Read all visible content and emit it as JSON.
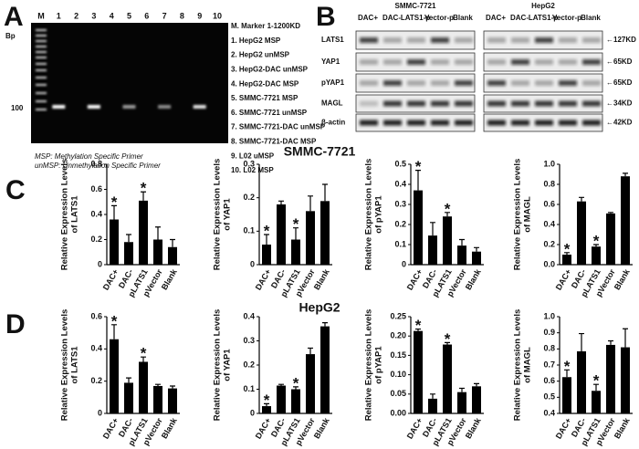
{
  "figure": {
    "panel_labels": [
      "A",
      "B",
      "C",
      "D"
    ],
    "section_titles": [
      "SMMC-7721",
      "HepG2"
    ],
    "gel": {
      "bp_label": "Bp",
      "lanes": [
        "M",
        "1",
        "2",
        "3",
        "4",
        "5",
        "6",
        "7",
        "8",
        "9",
        "10"
      ],
      "marker_label": "100",
      "legend": [
        "M. Marker 1-1200KD",
        "1. HepG2 MSP",
        "2. HepG2 unMSP",
        "3. HepG2-DAC unMSP",
        "4. HepG2-DAC MSP",
        "5. SMMC-7721 MSP",
        "6. SMMC-7721 unMSP",
        "7. SMMC-7721-DAC unMSP",
        "8. SMMC-7721-DAC MSP",
        "9. L02 uMSP",
        "10. L02 MSP"
      ],
      "notes": [
        "MSP: Methylation Specific Primer",
        "unMSP: Unmethylation Specific Primer"
      ]
    },
    "blot": {
      "cell_lines": [
        "SMMC-7721",
        "HepG2"
      ],
      "columns": [
        "DAC+",
        "DAC-",
        "LATS1-p",
        "Vector-p",
        "Blank"
      ],
      "rows": [
        "LATS1",
        "YAP1",
        "pYAP1",
        "MAGL",
        "β-actin"
      ],
      "sizes": [
        "←127KD",
        "←65KD",
        "←65KD",
        "←34KD",
        "←42KD"
      ]
    }
  },
  "chart_data": [
    {
      "type": "bar",
      "ylabel": [
        "Relative Expression Levels",
        "of LATS1"
      ],
      "categories": [
        "DAC+",
        "DAC-",
        "pLATS1",
        "pVector",
        "Blank"
      ],
      "values": [
        0.36,
        0.18,
        0.51,
        0.2,
        0.14
      ],
      "errors": [
        0.11,
        0.06,
        0.07,
        0.1,
        0.06
      ],
      "significance": [
        "*",
        null,
        "*",
        null,
        null
      ],
      "color": "#000000",
      "ylim": [
        0,
        0.8
      ],
      "yticks": [
        0,
        0.2,
        0.4,
        0.6,
        0.8
      ]
    },
    {
      "type": "bar",
      "ylabel": [
        "Relative Expression Levels",
        "of YAP1"
      ],
      "categories": [
        "DAC+",
        "DAC-",
        "pLATS1",
        "pVector",
        "Blank"
      ],
      "values": [
        0.06,
        0.18,
        0.075,
        0.16,
        0.19
      ],
      "errors": [
        0.03,
        0.01,
        0.035,
        0.045,
        0.05
      ],
      "significance": [
        "*",
        null,
        "*",
        null,
        null
      ],
      "color": "#000000",
      "ylim": [
        0,
        0.3
      ],
      "yticks": [
        0,
        0.1,
        0.2,
        0.3
      ]
    },
    {
      "type": "bar",
      "ylabel": [
        "Relative Expression Levels",
        "of pYAP1"
      ],
      "categories": [
        "DAC+",
        "DAC-",
        "pLATS1",
        "pVector",
        "Blank"
      ],
      "values": [
        0.37,
        0.145,
        0.24,
        0.095,
        0.065
      ],
      "errors": [
        0.1,
        0.065,
        0.02,
        0.03,
        0.02
      ],
      "significance": [
        "*",
        null,
        "*",
        null,
        null
      ],
      "color": "#000000",
      "ylim": [
        0,
        0.5
      ],
      "yticks": [
        0,
        0.1,
        0.2,
        0.3,
        0.4,
        0.5
      ]
    },
    {
      "type": "bar",
      "ylabel": [
        "Relative Expression Levels",
        "of MAGL"
      ],
      "categories": [
        "DAC+",
        "DAC-",
        "pLATS1",
        "pVector",
        "Blank"
      ],
      "values": [
        0.1,
        0.63,
        0.18,
        0.51,
        0.88
      ],
      "errors": [
        0.02,
        0.04,
        0.02,
        0.01,
        0.03
      ],
      "significance": [
        "*",
        null,
        "*",
        null,
        null
      ],
      "color": "#000000",
      "ylim": [
        0,
        1.0
      ],
      "yticks": [
        {
          "value": 0,
          "label": "0.0"
        },
        0.2,
        0.4,
        0.6,
        0.8,
        {
          "value": 1,
          "label": "1.0"
        }
      ]
    },
    {
      "type": "bar",
      "ylabel": [
        "Relative Expression Levels",
        "of LATS1"
      ],
      "categories": [
        "DAC+",
        "DAC-",
        "pLATS1",
        "pVector",
        "Blank"
      ],
      "values": [
        0.46,
        0.19,
        0.32,
        0.17,
        0.155
      ],
      "errors": [
        0.09,
        0.03,
        0.03,
        0.01,
        0.015
      ],
      "significance": [
        "*",
        null,
        "*",
        null,
        null
      ],
      "color": "#000000",
      "ylim": [
        0,
        0.6
      ],
      "yticks": [
        0,
        0.2,
        0.4,
        0.6
      ]
    },
    {
      "type": "bar",
      "ylabel": [
        "Relative Expression Levels",
        "of YAP1"
      ],
      "categories": [
        "DAC+",
        "DAC-",
        "pLATS1",
        "pVector",
        "Blank"
      ],
      "values": [
        0.03,
        0.115,
        0.1,
        0.245,
        0.36
      ],
      "errors": [
        0.01,
        0.005,
        0.01,
        0.025,
        0.015
      ],
      "significance": [
        "*",
        null,
        "*",
        null,
        null
      ],
      "color": "#000000",
      "ylim": [
        0,
        0.4
      ],
      "yticks": [
        0,
        0.1,
        0.2,
        0.3,
        0.4
      ]
    },
    {
      "type": "bar",
      "ylabel": [
        "Relative Expression Levels",
        "of pYAP1"
      ],
      "categories": [
        "DAC+",
        "DAC-",
        "pLATS1",
        "pVector",
        "Blank"
      ],
      "values": [
        0.213,
        0.038,
        0.178,
        0.055,
        0.07
      ],
      "errors": [
        0.005,
        0.012,
        0.005,
        0.01,
        0.007
      ],
      "significance": [
        "*",
        null,
        "*",
        null,
        null
      ],
      "color": "#000000",
      "ylim": [
        0,
        0.25
      ],
      "yticks": [
        {
          "value": 0,
          "label": "0.00"
        },
        0.05,
        {
          "value": 0.1,
          "label": "0.10"
        },
        0.15,
        {
          "value": 0.2,
          "label": "0.20"
        },
        0.25
      ]
    },
    {
      "type": "bar",
      "ylabel": [
        "Relative Expression Levels",
        "of MAGL"
      ],
      "categories": [
        "DAC+",
        "DAC-",
        "pLATS1",
        "pVector",
        "Blank"
      ],
      "values": [
        0.625,
        0.785,
        0.54,
        0.825,
        0.81
      ],
      "errors": [
        0.045,
        0.11,
        0.04,
        0.025,
        0.115
      ],
      "significance": [
        "*",
        null,
        "*",
        null,
        null
      ],
      "color": "#000000",
      "ylim": [
        0.4,
        1.0
      ],
      "yticks": [
        0.4,
        0.5,
        0.6,
        0.7,
        0.8,
        0.9,
        {
          "value": 1,
          "label": "1.0"
        }
      ]
    }
  ]
}
